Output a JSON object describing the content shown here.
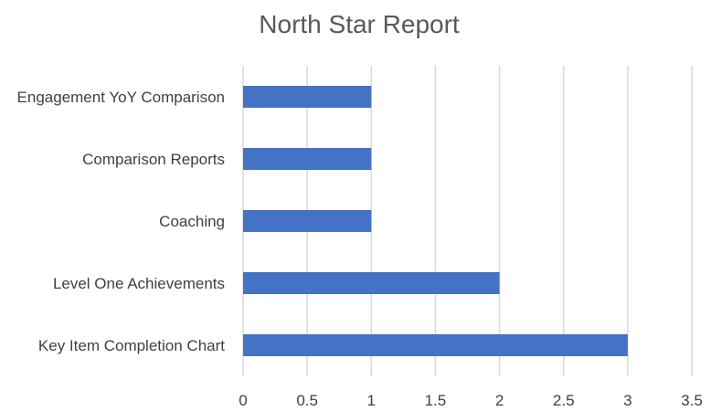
{
  "chart_data": {
    "type": "bar",
    "orientation": "horizontal",
    "title": "North Star Report",
    "xlabel": "",
    "ylabel": "",
    "categories": [
      "Engagement YoY Comparison",
      "Comparison Reports",
      "Coaching",
      "Level One Achievements",
      "Key Item Completion Chart"
    ],
    "values": [
      1,
      1,
      1,
      2,
      3
    ],
    "xlim": [
      0,
      3.5
    ],
    "xticks": [
      "0",
      "0.5",
      "1",
      "1.5",
      "2",
      "2.5",
      "3",
      "3.5"
    ],
    "grid": true,
    "legend": "none",
    "bar_color": "#4472c4"
  }
}
